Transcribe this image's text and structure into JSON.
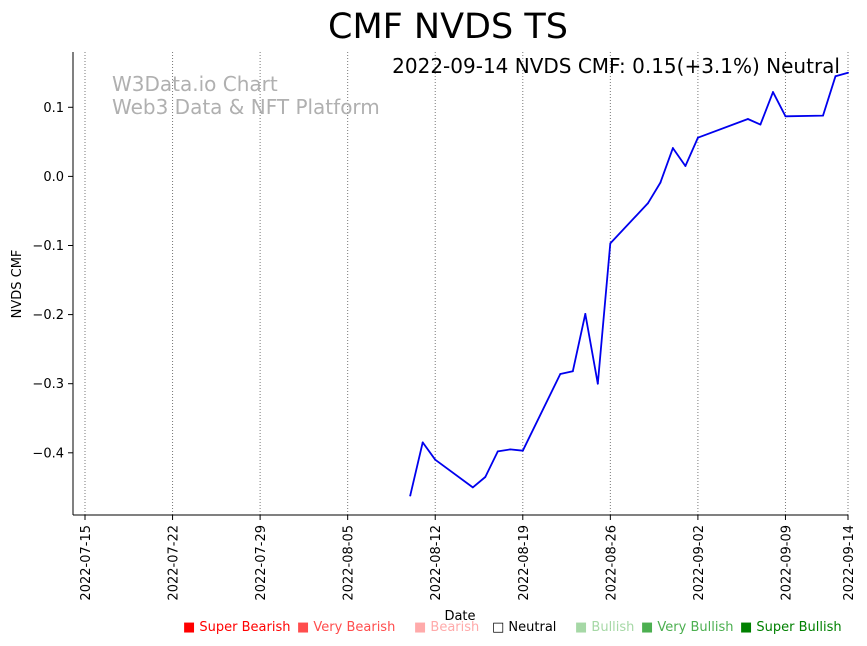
{
  "chart_data": {
    "type": "line",
    "title": "CMF NVDS TS",
    "xlabel": "Date",
    "ylabel": "NVDS CMF",
    "annotation": "2022-09-14 NVDS CMF: 0.15(+3.1%) Neutral",
    "watermark": [
      "W3Data.io Chart",
      "Web3 Data & NFT Platform"
    ],
    "x_range": [
      "2022-07-14",
      "2022-09-14"
    ],
    "ylim": [
      -0.49,
      0.18
    ],
    "x_ticks": [
      "2022-07-15",
      "2022-07-22",
      "2022-07-29",
      "2022-08-05",
      "2022-08-12",
      "2022-08-19",
      "2022-08-26",
      "2022-09-02",
      "2022-09-09",
      "2022-09-14"
    ],
    "y_ticks": [
      "0.1",
      "0.0",
      "−0.1",
      "−0.2",
      "−0.3",
      "−0.4"
    ],
    "y_tick_values": [
      0.1,
      0.0,
      -0.1,
      -0.2,
      -0.3,
      -0.4
    ],
    "grid": "vertical-dotted",
    "series": [
      {
        "name": "NVDS CMF",
        "color": "#0000ee",
        "x": [
          "2022-08-10",
          "2022-08-11",
          "2022-08-12",
          "2022-08-15",
          "2022-08-16",
          "2022-08-17",
          "2022-08-18",
          "2022-08-19",
          "2022-08-22",
          "2022-08-23",
          "2022-08-24",
          "2022-08-25",
          "2022-08-26",
          "2022-08-29",
          "2022-08-30",
          "2022-08-31",
          "2022-09-01",
          "2022-09-02",
          "2022-09-06",
          "2022-09-07",
          "2022-09-08",
          "2022-09-09",
          "2022-09-12",
          "2022-09-13",
          "2022-09-14"
        ],
        "values": [
          -0.462,
          -0.385,
          -0.41,
          -0.45,
          -0.435,
          -0.398,
          -0.395,
          -0.397,
          -0.286,
          -0.282,
          -0.199,
          -0.3,
          -0.097,
          -0.039,
          -0.009,
          0.041,
          0.015,
          0.056,
          0.083,
          0.075,
          0.122,
          0.087,
          0.088,
          0.145,
          0.15
        ]
      }
    ]
  },
  "legend": [
    {
      "label": "■ Super Bearish",
      "color": "#ff0000"
    },
    {
      "label": "■ Very Bearish",
      "color": "#ff4d4d"
    },
    {
      "label": "■ Bearish",
      "color": "#ffaaaa"
    },
    {
      "label": "□ Neutral",
      "color": "#000000"
    },
    {
      "label": "■ Bullish",
      "color": "#a6d8a6"
    },
    {
      "label": "■ Very Bullish",
      "color": "#4caf50"
    },
    {
      "label": "■ Super Bullish",
      "color": "#008000"
    }
  ]
}
